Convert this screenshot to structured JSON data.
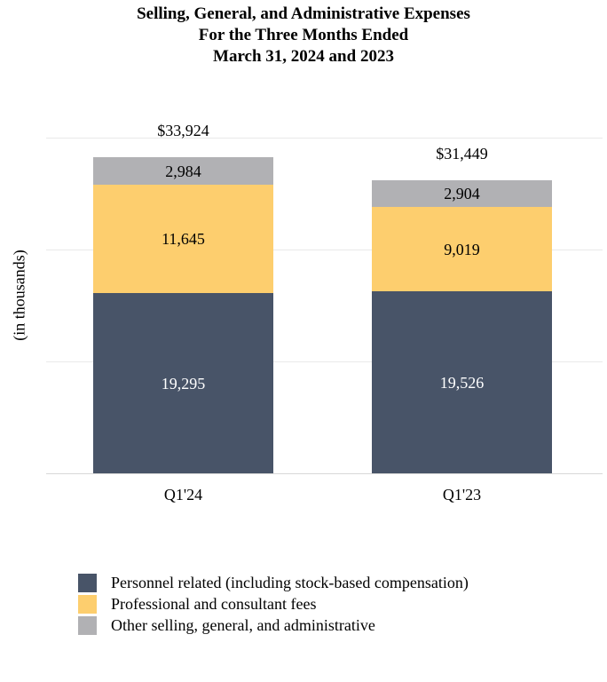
{
  "title": {
    "line1": "Selling, General, and Administrative Expenses",
    "line2": "For the Three Months Ended",
    "line3": "March 31, 2024 and 2023"
  },
  "y_axis_label": "(in thousands)",
  "chart_data": {
    "type": "bar",
    "stacked": true,
    "title": "Selling, General, and Administrative Expenses For the Three Months Ended March 31, 2024 and 2023",
    "xlabel": "",
    "ylabel": "(in thousands)",
    "ylim": [
      0,
      36000
    ],
    "gridline_interval": 12000,
    "grid": true,
    "y_tick_labels_shown": false,
    "legend_position": "bottom-left",
    "categories": [
      "Q1'24",
      "Q1'23"
    ],
    "series": [
      {
        "name": "Personnel related (including stock-based compensation)",
        "color": "#485468",
        "label_color": "#ffffff",
        "values": [
          19295,
          19526
        ],
        "value_labels": [
          "19,295",
          "19,526"
        ]
      },
      {
        "name": "Professional and consultant fees",
        "color": "#FDCE6E",
        "label_color": "#000000",
        "values": [
          11645,
          9019
        ],
        "value_labels": [
          "11,645",
          "9,019"
        ]
      },
      {
        "name": "Other selling, general, and administrative",
        "color": "#B1B1B4",
        "label_color": "#000000",
        "values": [
          2984,
          2904
        ],
        "value_labels": [
          "2,984",
          "2,904"
        ]
      }
    ],
    "totals": [
      33924,
      31449
    ],
    "total_labels": [
      "$33,924",
      "$31,449"
    ]
  },
  "legend": {
    "items": [
      {
        "label": "Personnel related (including stock-based compensation)",
        "color": "#485468"
      },
      {
        "label": "Professional and consultant fees",
        "color": "#FDCE6E"
      },
      {
        "label": "Other selling, general, and administrative",
        "color": "#B1B1B4"
      }
    ]
  }
}
